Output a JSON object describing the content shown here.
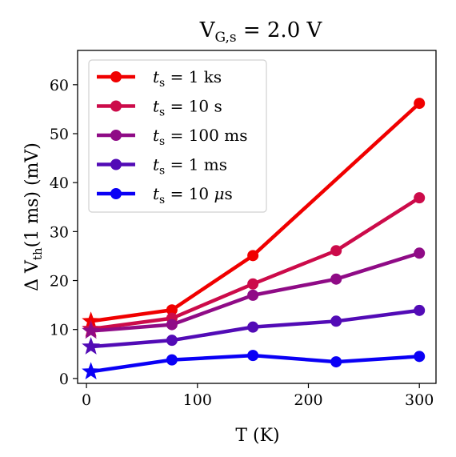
{
  "chart_data": {
    "type": "line",
    "title": "V_G,s = 2.0 V",
    "title_parts": {
      "v": "V",
      "sub": "G,s",
      "rest": " = 2.0 V"
    },
    "xlabel": "T (K)",
    "ylabel": "Δ V_th(1 ms) (mV)",
    "ylabel_parts": {
      "delta": "Δ V",
      "sub": "th",
      "rest": "(1 ms) (mV)"
    },
    "xlim": [
      -8,
      315
    ],
    "ylim": [
      -1,
      67
    ],
    "xticks": [
      0,
      100,
      200,
      300
    ],
    "yticks": [
      0,
      10,
      20,
      30,
      40,
      50,
      60
    ],
    "grid": false,
    "legend_position": "top-left",
    "series": [
      {
        "name": "t_s = 1 ks",
        "legend": {
          "t": "t",
          "sub": "s",
          "rest": " = 1 ks"
        },
        "color": "#f00000",
        "x": [
          4,
          77,
          150,
          225,
          300
        ],
        "y": [
          11.7,
          14.0,
          25.1,
          null,
          56.2
        ],
        "star_at_x": 4
      },
      {
        "name": "t_s = 10 s",
        "legend": {
          "t": "t",
          "sub": "s",
          "rest": " = 10 s"
        },
        "color": "#cc0b4a",
        "x": [
          4,
          77,
          150,
          225,
          300
        ],
        "y": [
          10.1,
          12.3,
          19.3,
          26.1,
          36.9
        ],
        "star_at_x": 4
      },
      {
        "name": "t_s = 100 ms",
        "legend": {
          "t": "t",
          "sub": "s",
          "rest": " = 100 ms"
        },
        "color": "#8f0b86",
        "x": [
          4,
          77,
          150,
          225,
          300
        ],
        "y": [
          9.7,
          11.0,
          17.0,
          20.3,
          25.6
        ],
        "star_at_x": 4
      },
      {
        "name": "t_s = 1 ms",
        "legend": {
          "t": "t",
          "sub": "s",
          "rest": " = 1 ms"
        },
        "color": "#520bb6",
        "x": [
          4,
          77,
          150,
          225,
          300
        ],
        "y": [
          6.5,
          7.8,
          10.5,
          11.7,
          13.9
        ],
        "star_at_x": 4
      },
      {
        "name": "t_s = 10 μs",
        "legend": {
          "t": "t",
          "sub": "s",
          "rest": " = 10 ",
          "mu": "μ",
          "unit": "s"
        },
        "color": "#0a00f5",
        "x": [
          4,
          77,
          150,
          225,
          300
        ],
        "y": [
          1.4,
          3.8,
          4.7,
          3.4,
          4.5
        ],
        "star_at_x": 4
      }
    ]
  }
}
